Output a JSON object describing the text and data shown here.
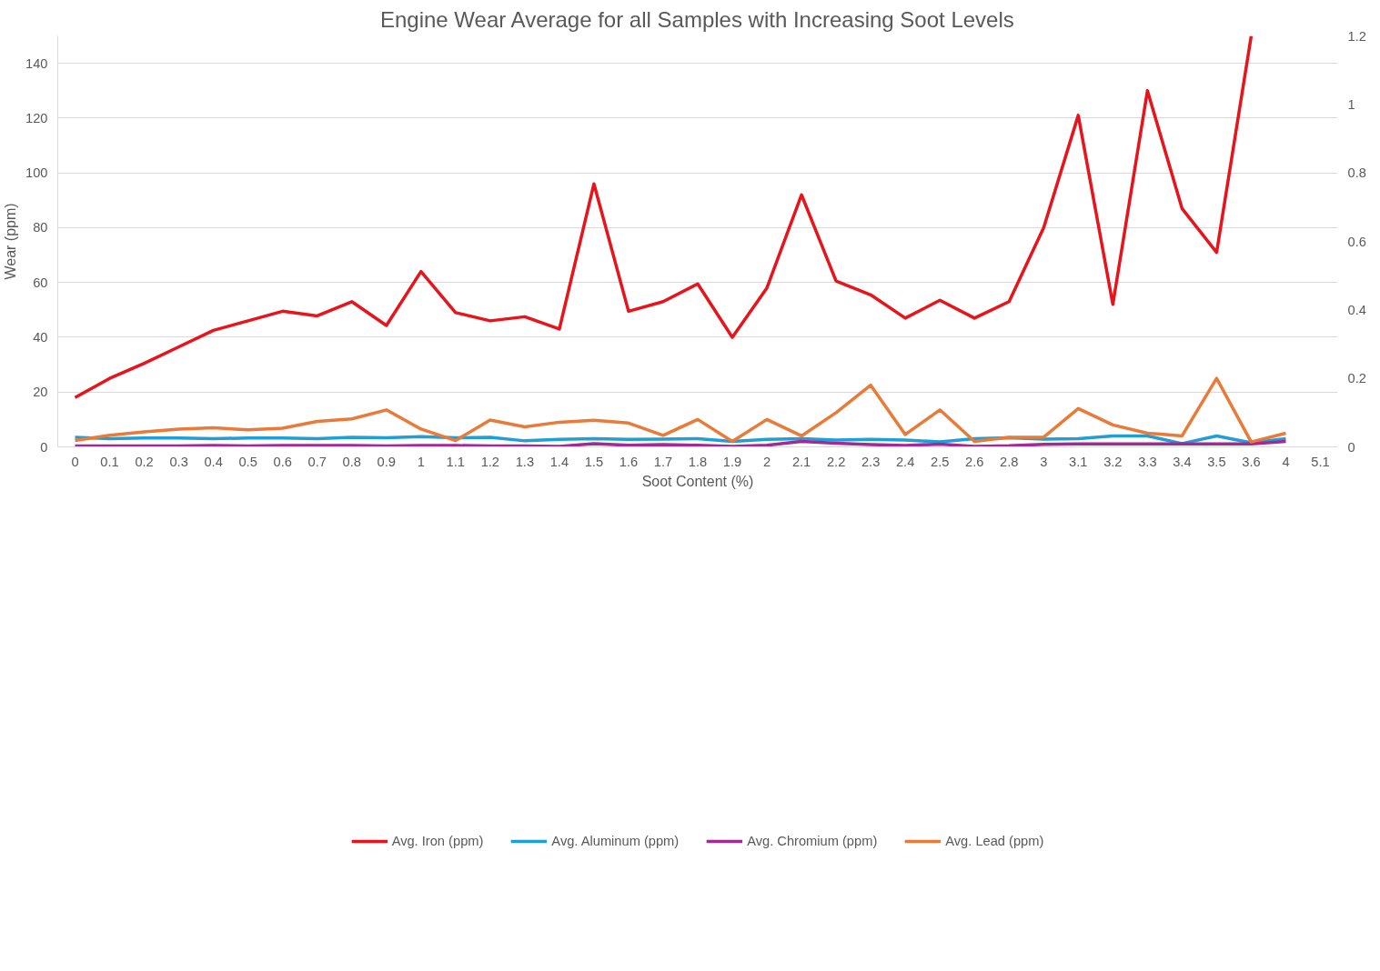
{
  "chart_data": {
    "type": "line",
    "title": "Engine Wear Average for all Samples with Increasing Soot Levels",
    "xlabel": "Soot Content (%)",
    "ylabel": "Wear (ppm)",
    "categories": [
      "0",
      "0.1",
      "0.2",
      "0.3",
      "0.4",
      "0.5",
      "0.6",
      "0.7",
      "0.8",
      "0.9",
      "1",
      "1.1",
      "1.2",
      "1.3",
      "1.4",
      "1.5",
      "1.6",
      "1.7",
      "1.8",
      "1.9",
      "2",
      "2.1",
      "2.2",
      "2.3",
      "2.4",
      "2.5",
      "2.6",
      "2.8",
      "3",
      "3.1",
      "3.2",
      "3.3",
      "3.4",
      "3.5",
      "3.6",
      "4",
      "5.1"
    ],
    "series": [
      {
        "name": "Avg. Iron (ppm)",
        "color": "#e8141c",
        "values": [
          18,
          25,
          30.5,
          36.5,
          42.5,
          46,
          49.5,
          47.8,
          53,
          44.3,
          64,
          49,
          46,
          47.5,
          43,
          96,
          49.5,
          53,
          59.5,
          40,
          58,
          92,
          60.5,
          55.5,
          47,
          53.5,
          47,
          53,
          80,
          121,
          52,
          130,
          87,
          71,
          150,
          null,
          null
        ]
      },
      {
        "name": "Avg. Aluminum (ppm)",
        "color": "#1f9fd5",
        "values": [
          3.5,
          3,
          3.2,
          3.2,
          3,
          3.2,
          3.2,
          3,
          3.5,
          3.3,
          3.7,
          3.3,
          3.5,
          2.2,
          2.7,
          3,
          2.7,
          2.8,
          3,
          2,
          2.7,
          3,
          2.5,
          2.7,
          2.5,
          1.8,
          3,
          3.3,
          2.8,
          3,
          4,
          4,
          1.2,
          4,
          1.5,
          3,
          null
        ]
      },
      {
        "name": "Avg. Chromium (ppm)",
        "color": "#a02b93",
        "values": [
          0.3,
          0.3,
          0.3,
          0.3,
          0.5,
          0.3,
          0.5,
          0.5,
          0.5,
          0.3,
          0.5,
          0.5,
          0.3,
          0.3,
          0.2,
          1.2,
          0.6,
          0.8,
          0.6,
          0.2,
          0.6,
          2,
          1.3,
          0.8,
          0.5,
          1,
          0.2,
          0.4,
          0.9,
          1.1,
          1.1,
          1.1,
          1.1,
          1.1,
          1.1,
          2,
          null
        ]
      },
      {
        "name": "Avg. Lead (ppm)",
        "color": "#e97a37",
        "values": [
          2.3,
          4.2,
          5.5,
          6.5,
          7,
          6.2,
          6.8,
          9.3,
          10.2,
          13.5,
          6.5,
          2.3,
          9.8,
          7.3,
          9,
          9.7,
          8.7,
          4.2,
          10,
          2,
          10,
          4,
          12.5,
          22.5,
          4.5,
          13.5,
          2,
          3.5,
          3.5,
          14,
          8,
          5,
          4,
          25,
          1.8,
          5,
          null
        ]
      }
    ],
    "ylim": [
      0,
      150
    ],
    "yticks": [
      0,
      20,
      40,
      60,
      80,
      100,
      120,
      140
    ],
    "y2lim": [
      0,
      1.2
    ],
    "y2ticks": [
      0,
      0.2,
      0.4,
      0.6,
      0.8,
      1,
      1.2
    ],
    "grid": "y",
    "legend": "bottom",
    "line_style": "solid",
    "marker": "none"
  }
}
